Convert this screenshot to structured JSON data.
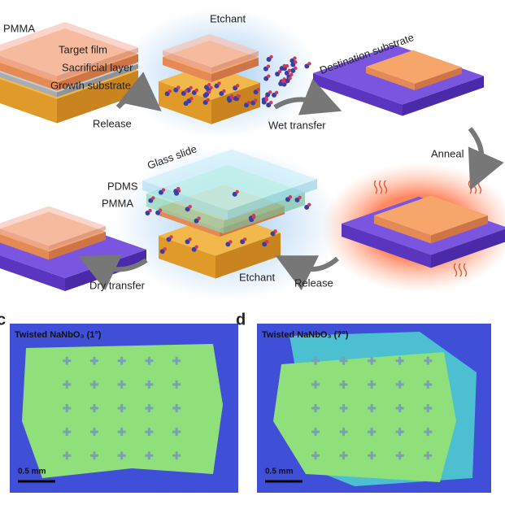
{
  "schematic": {
    "stack_labels": [
      "PMMA",
      "Target film",
      "Sacrificial layer",
      "Growth substrate"
    ],
    "release_1": "Release",
    "etchant_1": "Etchant",
    "wet_transfer": "Wet transfer",
    "destination": "Destination substrate",
    "anneal": "Anneal",
    "glass_slide": "Glass slide",
    "pdms": "PDMS",
    "pmma_2": "PMMA",
    "etchant_2": "Etchant",
    "release_2": "Release",
    "dry_transfer": "Dry transfer"
  },
  "panels": [
    {
      "label": "c",
      "title": "Twisted NaNbO₃ (1°)",
      "scale_bar": "0.5 mm"
    },
    {
      "label": "d",
      "title": "Twisted NaNbO₃ (7°)",
      "scale_bar": "0.5 mm"
    }
  ]
}
